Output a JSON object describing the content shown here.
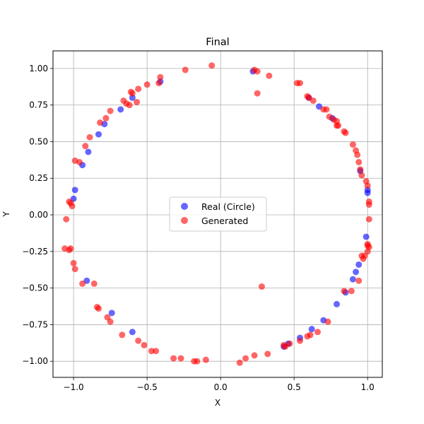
{
  "chart_data": {
    "type": "scatter",
    "title": "Final",
    "xlabel": "X",
    "ylabel": "Y",
    "xlim": [
      -1.14,
      1.1
    ],
    "ylim": [
      -1.11,
      1.12
    ],
    "xticks": [
      -1.0,
      -0.5,
      0.0,
      0.5,
      1.0
    ],
    "yticks": [
      -1.0,
      -0.75,
      -0.5,
      -0.25,
      0.0,
      0.25,
      0.5,
      0.75,
      1.0
    ],
    "xtick_labels": [
      "−1.0",
      "−0.5",
      "0.0",
      "0.5",
      "1.0"
    ],
    "ytick_labels": [
      "−1.00",
      "−0.75",
      "−0.50",
      "−0.25",
      "0.00",
      "0.25",
      "0.50",
      "0.75",
      "1.00"
    ],
    "grid": true,
    "legend_position": "center",
    "series": [
      {
        "name": "Real (Circle)",
        "color": "#0000ff",
        "points": [
          [
            0.22,
            0.98
          ],
          [
            -0.41,
            0.91
          ],
          [
            -0.6,
            0.8
          ],
          [
            -0.68,
            0.72
          ],
          [
            -0.79,
            0.62
          ],
          [
            -0.83,
            0.55
          ],
          [
            -0.9,
            0.43
          ],
          [
            -0.94,
            0.34
          ],
          [
            -0.99,
            0.17
          ],
          [
            -1.0,
            0.11
          ],
          [
            -0.91,
            -0.45
          ],
          [
            -0.74,
            -0.67
          ],
          [
            -0.6,
            -0.8
          ],
          [
            0.43,
            -0.9
          ],
          [
            0.46,
            -0.88
          ],
          [
            0.54,
            -0.84
          ],
          [
            0.62,
            -0.78
          ],
          [
            0.7,
            -0.72
          ],
          [
            0.79,
            -0.61
          ],
          [
            0.85,
            -0.53
          ],
          [
            0.9,
            -0.44
          ],
          [
            0.92,
            -0.39
          ],
          [
            0.94,
            -0.34
          ],
          [
            0.99,
            -0.15
          ],
          [
            1.0,
            0.15
          ],
          [
            1.0,
            0.17
          ],
          [
            0.95,
            0.3
          ],
          [
            0.76,
            0.66
          ],
          [
            0.67,
            0.74
          ],
          [
            0.6,
            0.8
          ]
        ]
      },
      {
        "name": "Generated",
        "color": "#ff0000",
        "points": [
          [
            -0.06,
            1.02
          ],
          [
            -0.24,
            0.99
          ],
          [
            0.23,
            0.99
          ],
          [
            0.25,
            0.98
          ],
          [
            0.33,
            0.95
          ],
          [
            0.25,
            0.83
          ],
          [
            0.52,
            0.9
          ],
          [
            0.54,
            0.9
          ],
          [
            -0.41,
            0.94
          ],
          [
            -0.42,
            0.9
          ],
          [
            -0.5,
            0.89
          ],
          [
            -0.56,
            0.86
          ],
          [
            -0.61,
            0.84
          ],
          [
            -0.6,
            0.83
          ],
          [
            -0.66,
            0.78
          ],
          [
            -0.64,
            0.76
          ],
          [
            -0.62,
            0.75
          ],
          [
            -0.57,
            0.77
          ],
          [
            -0.75,
            0.71
          ],
          [
            -0.78,
            0.66
          ],
          [
            -0.82,
            0.63
          ],
          [
            -0.89,
            0.53
          ],
          [
            -0.92,
            0.47
          ],
          [
            -0.99,
            0.37
          ],
          [
            -0.96,
            0.36
          ],
          [
            -1.03,
            0.09
          ],
          [
            -1.02,
            0.08
          ],
          [
            -1.01,
            0.06
          ],
          [
            -1.05,
            -0.03
          ],
          [
            -1.06,
            -0.23
          ],
          [
            -1.03,
            -0.24
          ],
          [
            -1.02,
            -0.23
          ],
          [
            -1.0,
            -0.33
          ],
          [
            -0.99,
            -0.37
          ],
          [
            -0.94,
            -0.47
          ],
          [
            -0.86,
            -0.47
          ],
          [
            -0.84,
            -0.63
          ],
          [
            -0.83,
            -0.64
          ],
          [
            -0.77,
            -0.7
          ],
          [
            -0.75,
            -0.73
          ],
          [
            -0.67,
            -0.82
          ],
          [
            -0.56,
            -0.86
          ],
          [
            -0.52,
            -0.89
          ],
          [
            -0.47,
            -0.93
          ],
          [
            -0.44,
            -0.93
          ],
          [
            -0.32,
            -0.98
          ],
          [
            -0.27,
            -0.98
          ],
          [
            -0.18,
            -1.0
          ],
          [
            -0.16,
            -1.0
          ],
          [
            -0.1,
            -0.99
          ],
          [
            0.13,
            -1.01
          ],
          [
            0.17,
            -0.98
          ],
          [
            0.23,
            -0.96
          ],
          [
            0.32,
            -0.95
          ],
          [
            0.43,
            -0.89
          ],
          [
            0.44,
            -0.9
          ],
          [
            0.47,
            -0.88
          ],
          [
            0.54,
            -0.86
          ],
          [
            0.59,
            -0.83
          ],
          [
            0.61,
            -0.82
          ],
          [
            0.66,
            -0.8
          ],
          [
            0.73,
            -0.73
          ],
          [
            0.89,
            -0.52
          ],
          [
            0.84,
            -0.52
          ],
          [
            0.94,
            -0.45
          ],
          [
            0.97,
            -0.3
          ],
          [
            0.96,
            -0.28
          ],
          [
            0.98,
            -0.28
          ],
          [
            1.0,
            -0.25
          ],
          [
            1.0,
            -0.2
          ],
          [
            1.0,
            -0.21
          ],
          [
            1.01,
            -0.22
          ],
          [
            1.01,
            -0.03
          ],
          [
            1.01,
            0.07
          ],
          [
            1.01,
            0.09
          ],
          [
            1.0,
            0.2
          ],
          [
            0.99,
            0.23
          ],
          [
            0.96,
            0.27
          ],
          [
            0.95,
            0.31
          ],
          [
            0.94,
            0.36
          ],
          [
            0.93,
            0.41
          ],
          [
            0.92,
            0.44
          ],
          [
            0.9,
            0.48
          ],
          [
            0.85,
            0.56
          ],
          [
            0.84,
            0.57
          ],
          [
            0.8,
            0.61
          ],
          [
            0.79,
            0.61
          ],
          [
            0.79,
            0.64
          ],
          [
            0.77,
            0.65
          ],
          [
            0.74,
            0.67
          ],
          [
            0.72,
            0.72
          ],
          [
            0.7,
            0.72
          ],
          [
            0.63,
            0.78
          ],
          [
            0.6,
            0.8
          ],
          [
            0.59,
            0.81
          ],
          [
            0.28,
            -0.49
          ]
        ]
      }
    ]
  }
}
